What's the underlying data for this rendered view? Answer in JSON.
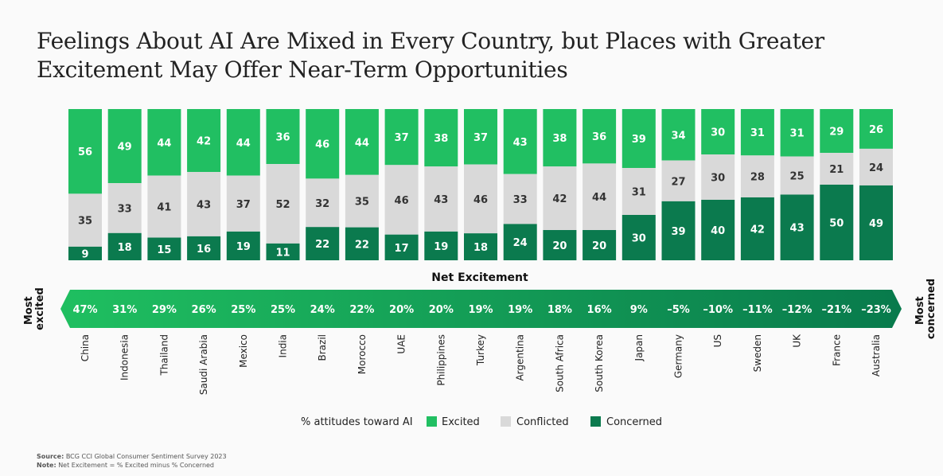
{
  "title_line1": "Feelings About AI Are Mixed in Every Country, but Places with Greater",
  "title_line2": "Excitement May Offer Near-Term Opportunities",
  "colors": {
    "excited": "#21bf62",
    "conflicted": "#d9d9d9",
    "concerned": "#0b7a4e",
    "arrow_left": "#1fbf60",
    "arrow_right": "#087a4c"
  },
  "net_excitement_label": "Net Excitement",
  "most_excited_label": [
    "Most",
    "excited"
  ],
  "most_concerned_label": [
    "Most",
    "concerned"
  ],
  "legend": {
    "title": "% attitudes toward AI",
    "excited": "Excited",
    "conflicted": "Conflicted",
    "concerned": "Concerned"
  },
  "source": {
    "source_label": "Source:",
    "source_text": "BCG CCI Global Consumer Sentiment Survey 2023",
    "note_label": "Note:",
    "note_text": "Net Excitement = % Excited minus % Concerned"
  },
  "chart_data": {
    "type": "bar",
    "stacked": true,
    "categories": [
      "China",
      "Indonesia",
      "Thailand",
      "Saudi Arabia",
      "Mexico",
      "India",
      "Brazil",
      "Morocco",
      "UAE",
      "Philippines",
      "Turkey",
      "Argentina",
      "South Africa",
      "South Korea",
      "Japan",
      "Germany",
      "US",
      "Sweden",
      "UK",
      "France",
      "Australia"
    ],
    "series": [
      {
        "name": "Excited",
        "values": [
          56,
          49,
          44,
          42,
          44,
          36,
          46,
          44,
          37,
          38,
          37,
          43,
          38,
          36,
          39,
          34,
          30,
          31,
          31,
          29,
          26
        ]
      },
      {
        "name": "Conflicted",
        "values": [
          35,
          33,
          41,
          43,
          37,
          52,
          32,
          35,
          46,
          43,
          46,
          33,
          42,
          44,
          31,
          27,
          30,
          28,
          25,
          21,
          24
        ]
      },
      {
        "name": "Concerned",
        "values": [
          9,
          18,
          15,
          16,
          19,
          11,
          22,
          22,
          17,
          19,
          18,
          24,
          20,
          20,
          30,
          39,
          40,
          42,
          43,
          50,
          49
        ]
      }
    ],
    "net_excitement": [
      "47%",
      "31%",
      "29%",
      "26%",
      "25%",
      "25%",
      "24%",
      "22%",
      "20%",
      "20%",
      "19%",
      "19%",
      "18%",
      "16%",
      "9%",
      "–5%",
      "–10%",
      "–11%",
      "–12%",
      "–21%",
      "–23%"
    ],
    "ylim": [
      0,
      100
    ]
  }
}
